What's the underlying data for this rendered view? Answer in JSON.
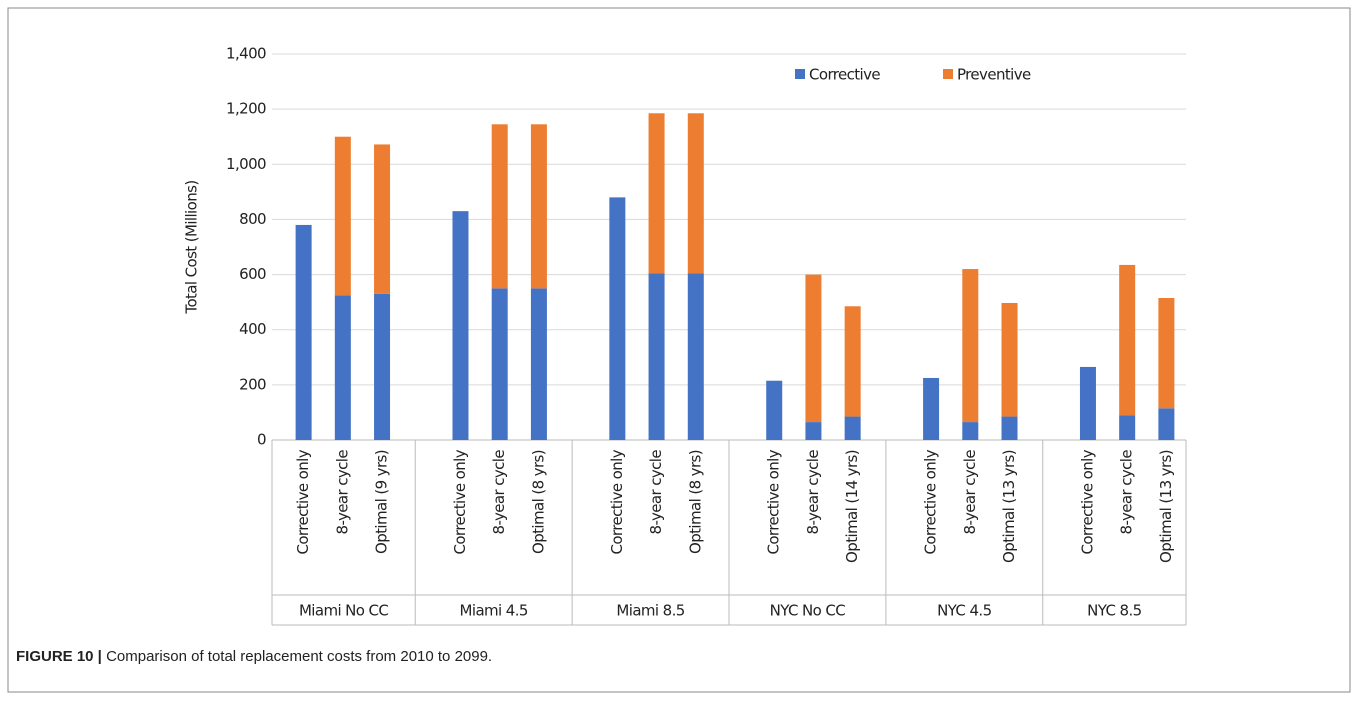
{
  "chart_data": {
    "type": "bar",
    "stacked": true,
    "ylabel": "Total Cost (Millions)",
    "categories": [
      "Corrective only",
      "8-year cycle",
      "Optimal (9 yrs)",
      null,
      "Corrective only",
      "8-year cycle",
      "Optimal (8 yrs)",
      null,
      "Corrective only",
      "8-year cycle",
      "Optimal (8 yrs)",
      null,
      "Corrective only",
      "8-year cycle",
      "Optimal (14 yrs)",
      null,
      "Corrective only",
      "8-year cycle",
      "Optimal (13 yrs)",
      null,
      "Corrective only",
      "8-year cycle",
      "Optimal (13 yrs)"
    ],
    "group_labels": [
      "Miami No CC",
      "Miami 4.5",
      "Miami 8.5",
      "NYC No CC",
      "NYC 4.5",
      "NYC 8.5"
    ],
    "series": [
      {
        "name": "Corrective",
        "color": "#4472c4",
        "values": [
          780,
          525,
          530,
          null,
          830,
          550,
          550,
          null,
          880,
          605,
          605,
          null,
          215,
          65,
          85,
          null,
          225,
          65,
          85,
          null,
          265,
          90,
          115
        ]
      },
      {
        "name": "Preventive",
        "color": "#ed7d31",
        "values": [
          null,
          575,
          542,
          null,
          null,
          595,
          595,
          null,
          null,
          580,
          580,
          null,
          null,
          535,
          400,
          null,
          null,
          555,
          412,
          null,
          null,
          545,
          400
        ]
      }
    ],
    "ylim": [
      0,
      1400
    ],
    "yticks": [
      0,
      200,
      400,
      600,
      800,
      {
        "value": 1000,
        "label": "1,000"
      },
      {
        "value": 1200,
        "label": "1,200"
      },
      {
        "value": 1400,
        "label": "1,400"
      }
    ],
    "grid": true,
    "legend": "top"
  },
  "caption": {
    "label": "FIGURE 10 |",
    "text": "Comparison of total replacement costs from 2010 to 2099."
  }
}
